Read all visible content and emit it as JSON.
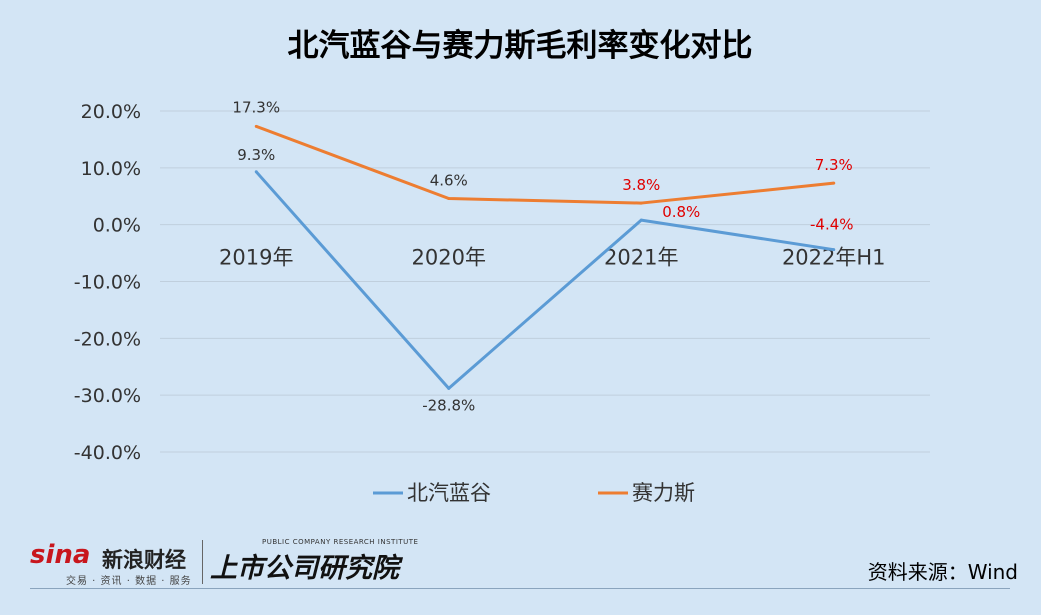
{
  "chart_data": {
    "type": "line",
    "title": "北汽蓝谷与赛力斯毛利率变化对比",
    "categories": [
      "2019年",
      "2020年",
      "2021年",
      "2022年H1"
    ],
    "ylim": [
      -40,
      20
    ],
    "yticks": [
      "20.0%",
      "10.0%",
      "0.0%",
      "-10.0%",
      "-20.0%",
      "-30.0%",
      "-40.0%"
    ],
    "grid": true,
    "legend_position": "bottom",
    "series": [
      {
        "name": "北汽蓝谷",
        "color": "#5b9bd5",
        "values": [
          9.3,
          -28.8,
          0.8,
          -4.4
        ],
        "labels": [
          "9.3%",
          "-28.8%",
          "0.8%",
          "-4.4%"
        ],
        "label_colors": [
          "#333333",
          "#333333",
          "#e00000",
          "#e00000"
        ]
      },
      {
        "name": "赛力斯",
        "color": "#ed7d31",
        "values": [
          17.3,
          4.6,
          3.8,
          7.3
        ],
        "labels": [
          "17.3%",
          "4.6%",
          "3.8%",
          "7.3%"
        ],
        "label_colors": [
          "#333333",
          "#333333",
          "#e00000",
          "#e00000"
        ]
      }
    ]
  },
  "footer": {
    "logo_sina": "sina",
    "logo_sina_cn": "新浪财经",
    "logo_sina_sub": "交易 · 资讯 · 数据 · 服务",
    "logo_institute_cn": "上市公司研究院",
    "logo_institute_en": "PUBLIC COMPANY RESEARCH INSTITUTE",
    "source": "资料来源：Wind"
  }
}
